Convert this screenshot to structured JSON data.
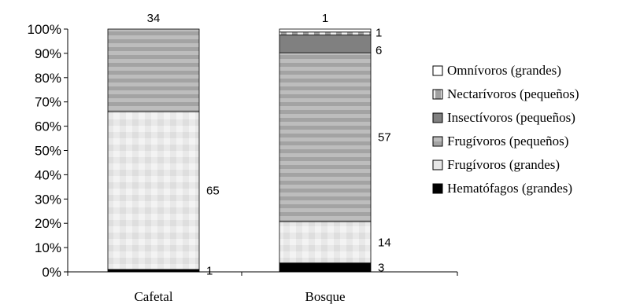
{
  "chart_data": {
    "type": "bar",
    "stacked": true,
    "percent": true,
    "categories": [
      "Cafetal",
      "Bosque"
    ],
    "series": [
      {
        "name": "Hematófagos (grandes)",
        "values": [
          1,
          3
        ],
        "color": "#000000",
        "pattern": "solid"
      },
      {
        "name": "Frugívoros (grandes)",
        "values": [
          65,
          14
        ],
        "color": "#e8e8e8",
        "pattern": "grid"
      },
      {
        "name": "Frugívoros (pequeños)",
        "values": [
          34,
          57
        ],
        "color": "#a9a9a9",
        "pattern": "horizontal-stripes"
      },
      {
        "name": "Insectívoros (pequeños)",
        "values": [
          0,
          6
        ],
        "color": "#808080",
        "pattern": "solid"
      },
      {
        "name": "Nectarívoros (pequeños)",
        "values": [
          0,
          1
        ],
        "color": "#999999",
        "pattern": "dashes"
      },
      {
        "name": "Omnívoros (grandes)",
        "values": [
          0,
          1
        ],
        "color": "#ffffff",
        "pattern": "solid"
      }
    ],
    "data_labels": [
      {
        "category": "Cafetal",
        "series": "Hematófagos (grandes)",
        "text": "1"
      },
      {
        "category": "Cafetal",
        "series": "Frugívoros (grandes)",
        "text": "65"
      },
      {
        "category": "Cafetal",
        "series": "Frugívoros (pequeños)",
        "text": "34"
      },
      {
        "category": "Bosque",
        "series": "Hematófagos (grandes)",
        "text": "3"
      },
      {
        "category": "Bosque",
        "series": "Frugívoros (grandes)",
        "text": "14"
      },
      {
        "category": "Bosque",
        "series": "Frugívoros (pequeños)",
        "text": "57"
      },
      {
        "category": "Bosque",
        "series": "Insectívoros (pequeños)",
        "text": "6"
      },
      {
        "category": "Bosque",
        "series": "Nectarívoros (pequeños)",
        "text": "1"
      },
      {
        "category": "Bosque",
        "series": "Omnívoros (grandes)",
        "text": "1"
      }
    ],
    "yticks": [
      "0%",
      "10%",
      "20%",
      "30%",
      "40%",
      "50%",
      "60%",
      "70%",
      "80%",
      "90%",
      "100%"
    ],
    "ylim": [
      0,
      100
    ],
    "grid": false,
    "legend_position": "right",
    "legend_order": [
      "Omnívoros (grandes)",
      "Nectarívoros (pequeños)",
      "Insectívoros (pequeños)",
      "Frugívoros (pequeños)",
      "Frugívoros (grandes)",
      "Hematófagos (grandes)"
    ],
    "title": "",
    "xlabel": "",
    "ylabel": ""
  }
}
